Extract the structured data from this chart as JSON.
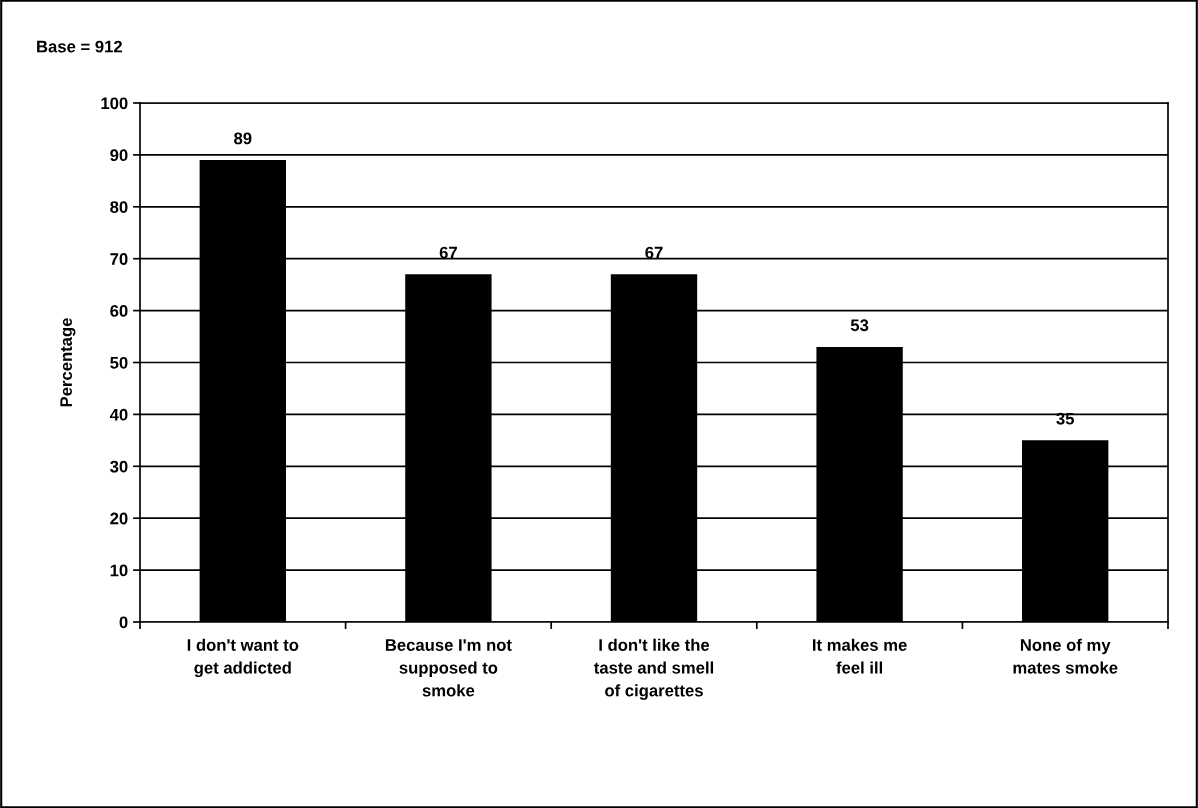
{
  "chart_data": {
    "type": "bar",
    "title": "Base = 912",
    "ylabel": "Percentage",
    "categories": [
      "I don't want to\nget addicted",
      "Because I'm not\nsupposed to\nsmoke",
      "I don't like the\ntaste and smell\nof cigarettes",
      "It makes me\nfeel ill",
      "None of my\nmates smoke"
    ],
    "values": [
      89,
      67,
      67,
      53,
      35
    ],
    "color": "#000000",
    "data_labels": true,
    "ylim": [
      0,
      100
    ],
    "yticks": [
      0,
      10,
      20,
      30,
      40,
      50,
      60,
      70,
      80,
      90,
      100
    ],
    "grid": "y",
    "legend": false
  }
}
